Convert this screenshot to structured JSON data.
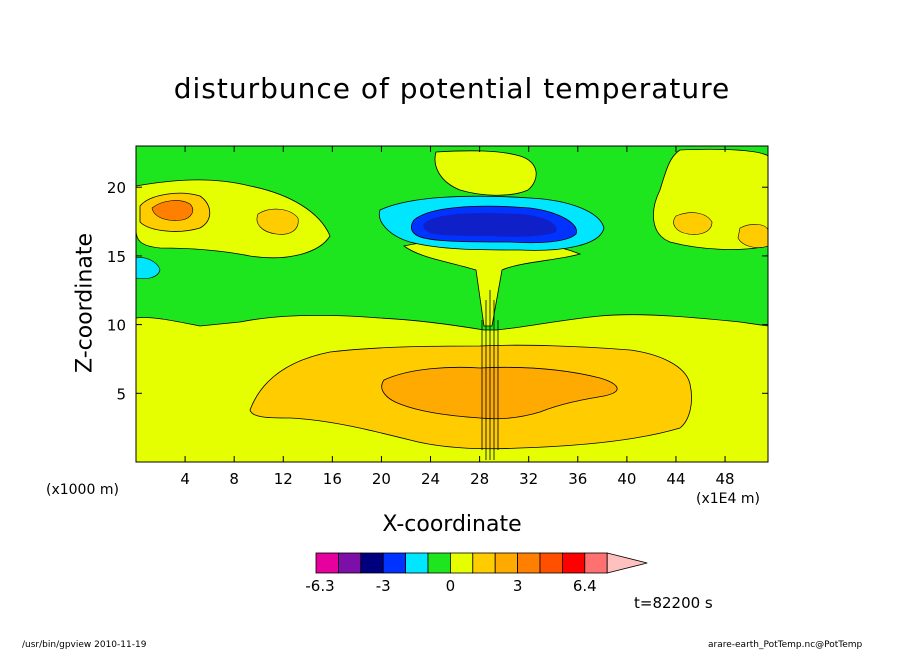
{
  "chart_data": {
    "type": "heatmap",
    "title": "disturbunce of potential temperature",
    "xlabel": "X-coordinate",
    "ylabel": "Z-coordinate",
    "x_unit_label": "(x1000 m)",
    "x_scale_label": "(x1E4 m)",
    "time_label": "t=82200 s",
    "xlim": [
      0,
      51.5
    ],
    "ylim": [
      0,
      23
    ],
    "x_ticks": [
      4,
      8,
      12,
      16,
      20,
      24,
      28,
      32,
      36,
      40,
      44,
      48
    ],
    "y_ticks": [
      5,
      10,
      15,
      20
    ],
    "grid": false,
    "colorbar": {
      "colors": [
        "#e6009e",
        "#7b0fa8",
        "#00007f",
        "#0033ff",
        "#00e6ff",
        "#1ee61e",
        "#e6ff00",
        "#ffcc00",
        "#ffaa00",
        "#ff8000",
        "#ff5000",
        "#ff0000",
        "#ff7070",
        "#ffc0c0"
      ],
      "tick_labels": [
        "-6.3",
        "-3",
        "0",
        "3",
        "6.4"
      ]
    },
    "regions": [
      {
        "name": "green",
        "level": "0 to 0.5",
        "color": "#1ee61e",
        "x_range": [
          0,
          51.5
        ],
        "z_range": [
          9.5,
          23
        ]
      },
      {
        "name": "cyan",
        "level": "-1",
        "color": "#00e6ff",
        "x_center": 31,
        "z_center": 17.2
      },
      {
        "name": "blue",
        "level": "-2",
        "color": "#0033ff",
        "x_center": 30,
        "z_center": 17.2
      },
      {
        "name": "dark-blue",
        "level": "-2.5",
        "color": "#1020c8",
        "x_center": 30,
        "z_center": 17.2
      },
      {
        "name": "yellow-upper",
        "level": "0.5",
        "color": "#e6ff00",
        "x_center": 28,
        "z_center": 20.5
      },
      {
        "name": "yellow-lower",
        "level": "0.5",
        "color": "#e6ff00",
        "x_range": [
          0,
          51.5
        ],
        "z_range": [
          0,
          10
        ]
      },
      {
        "name": "orange",
        "level": "1",
        "color": "#ffcc00",
        "x_center": 27.5,
        "z_center": 5.5
      },
      {
        "name": "dark-orange",
        "level": "2",
        "color": "#ffaa00",
        "x_center": 29,
        "z_center": 5.5
      },
      {
        "name": "orange-upper-left",
        "level": "1.5",
        "color": "#ffaa00",
        "x_center": 3,
        "z_center": 18.3
      }
    ]
  },
  "footer": {
    "left": "/usr/bin/gpview   2010-11-19",
    "right": "arare-earth_PotTemp.nc@PotTemp"
  }
}
